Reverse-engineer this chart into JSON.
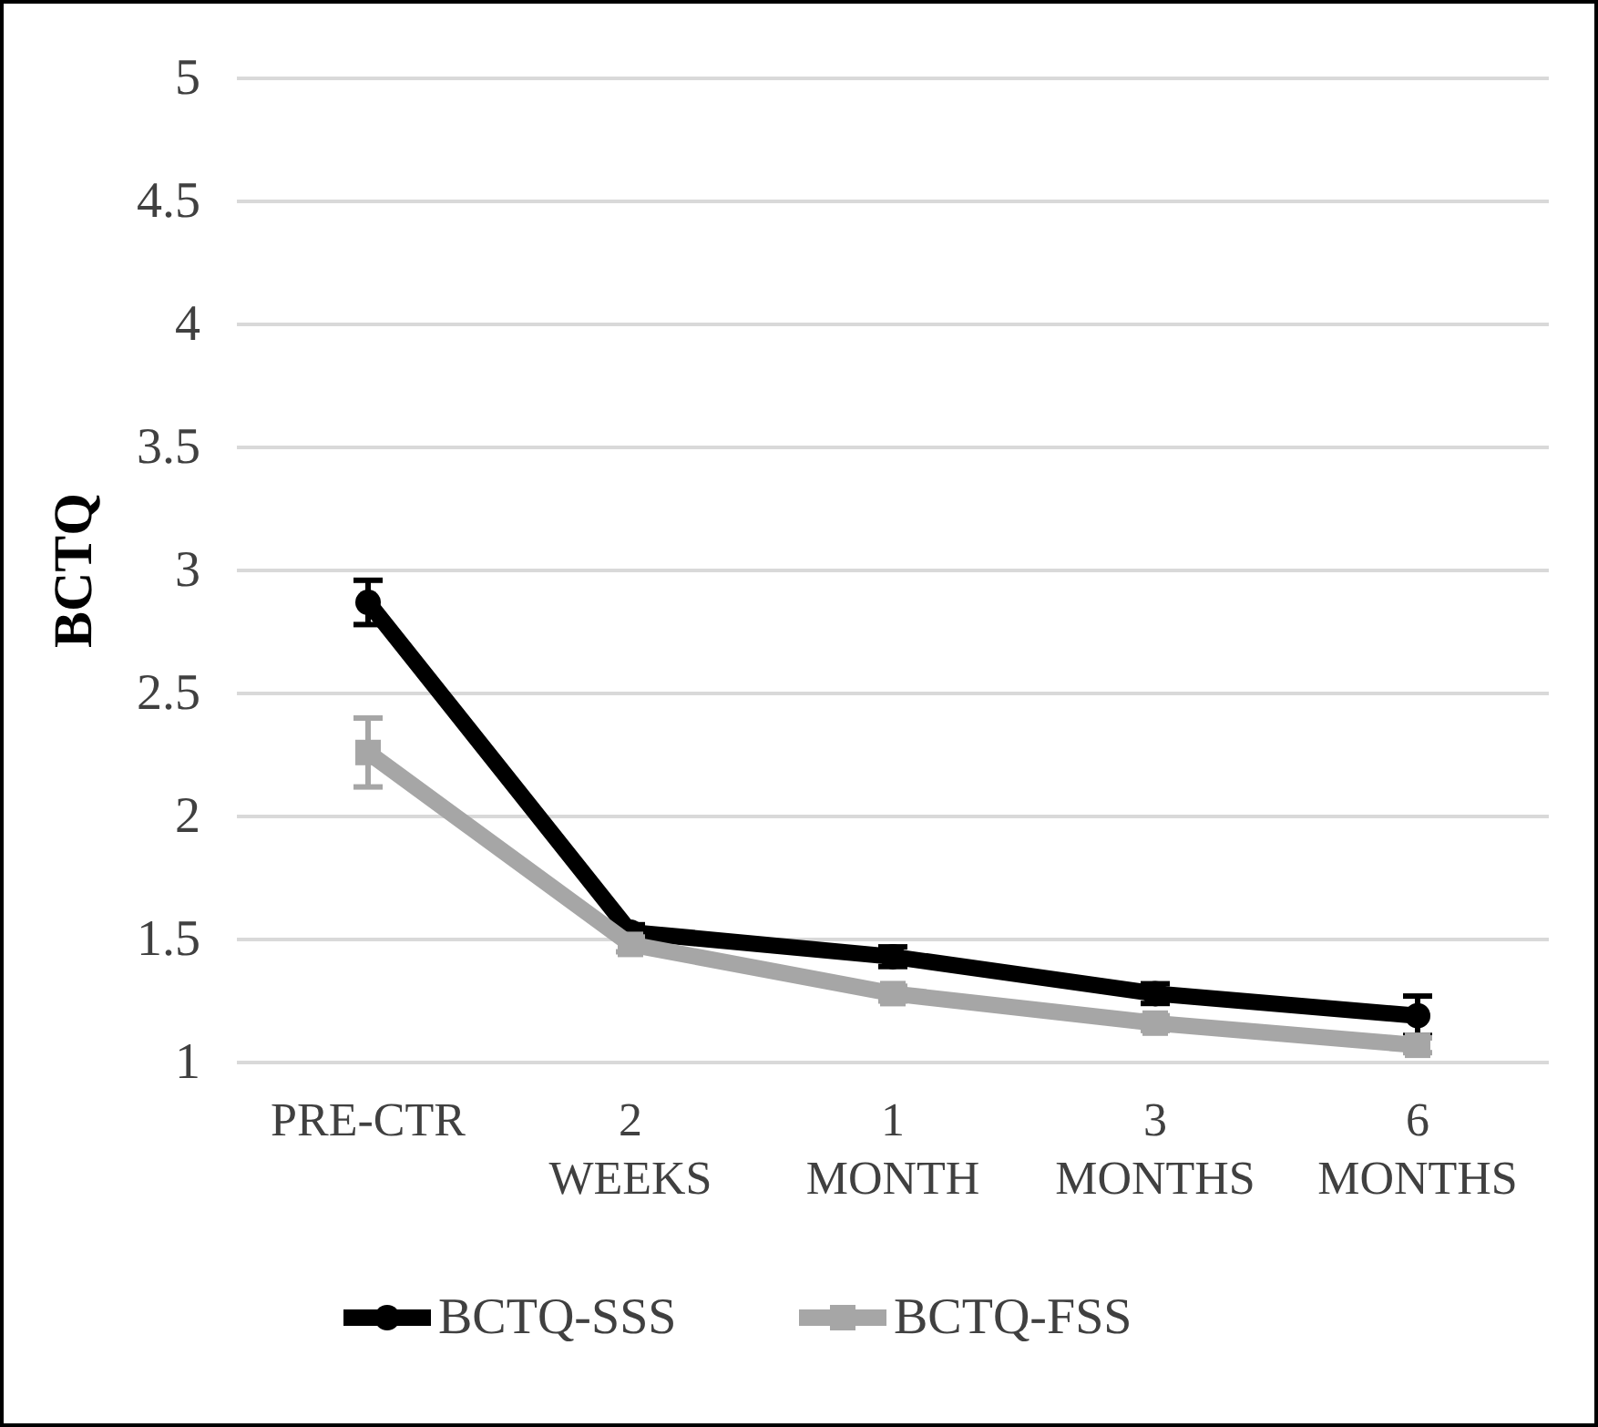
{
  "chart_data": {
    "type": "line",
    "ylabel": "BCTQ",
    "categories": [
      "PRE-CTR",
      "2\nWEEKS",
      "1\nMONTH",
      "3\nMONTHS",
      "6\nMONTHS"
    ],
    "series": [
      {
        "name": "BCTQ-SSS",
        "color": "#000000",
        "marker": "circle",
        "values": [
          2.87,
          1.53,
          1.43,
          1.28,
          1.19
        ],
        "errors": [
          0.09,
          0.03,
          0.04,
          0.04,
          0.08
        ]
      },
      {
        "name": "BCTQ-FSS",
        "color": "#a6a6a6",
        "marker": "square",
        "values": [
          2.26,
          1.48,
          1.28,
          1.16,
          1.07
        ],
        "errors": [
          0.14,
          0.03,
          0.03,
          0.03,
          0.03
        ]
      }
    ],
    "ylim": [
      1,
      5
    ],
    "yticks": [
      1,
      1.5,
      2,
      2.5,
      3,
      3.5,
      4,
      4.5,
      5
    ],
    "grid": "y",
    "legend": "bottom",
    "line_style": "solid"
  }
}
